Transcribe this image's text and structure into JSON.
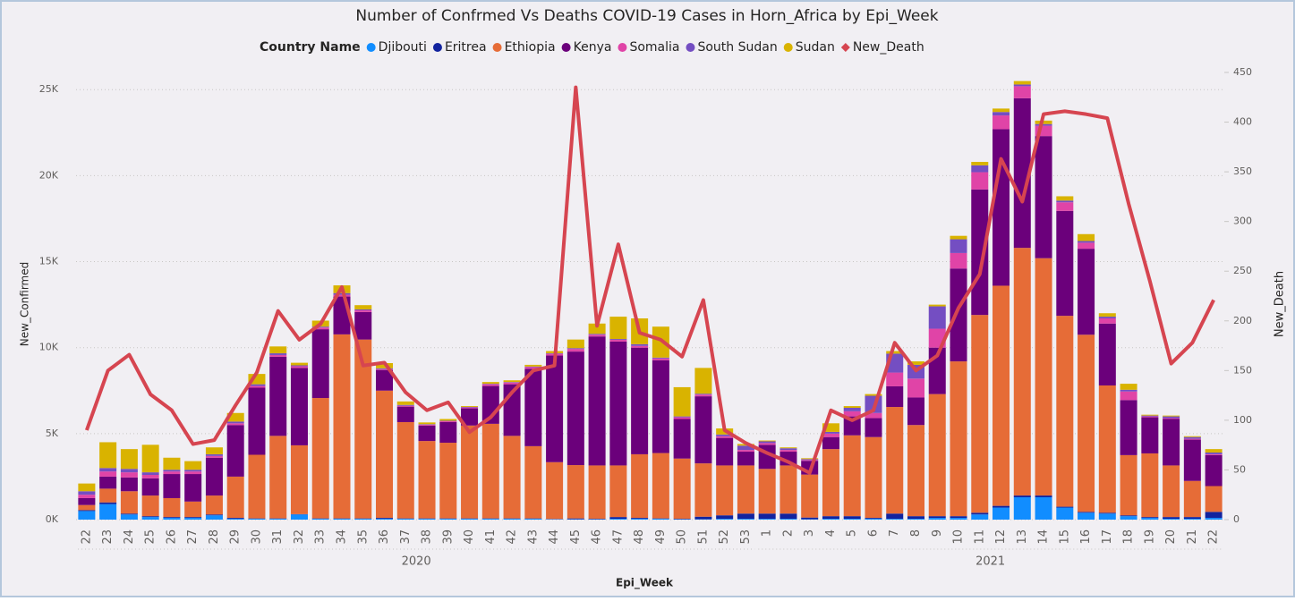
{
  "chart_data": {
    "type": "combo",
    "title": "Number of Confrmed Vs Deaths COVID-19 Cases in Horn_Africa by Epi_Week",
    "legend_title": "Country Name",
    "x_label": "Epi_Week",
    "y_label": "New_Confirmed",
    "y2_label": "New_Death",
    "categories": [
      "22",
      "23",
      "24",
      "25",
      "26",
      "27",
      "28",
      "29",
      "30",
      "31",
      "32",
      "33",
      "34",
      "35",
      "36",
      "37",
      "38",
      "39",
      "40",
      "41",
      "42",
      "43",
      "44",
      "45",
      "46",
      "47",
      "48",
      "49",
      "50",
      "51",
      "52",
      "53",
      "1",
      "2",
      "3",
      "4",
      "5",
      "6",
      "7",
      "8",
      "9",
      "10",
      "11",
      "12",
      "13",
      "14",
      "15",
      "16",
      "17",
      "18",
      "19",
      "20",
      "21",
      "22"
    ],
    "category_groups": [
      {
        "name": "2020",
        "size": 32
      },
      {
        "name": "2021",
        "size": 22
      }
    ],
    "ylim": [
      0,
      26000
    ],
    "yticks": [
      {
        "value": 0,
        "label": "0K"
      },
      {
        "value": 5000,
        "label": "5K"
      },
      {
        "value": 10000,
        "label": "10K"
      },
      {
        "value": 15000,
        "label": "15K"
      },
      {
        "value": 20000,
        "label": "20K"
      },
      {
        "value": 25000,
        "label": "25K"
      }
    ],
    "y2lim": [
      0,
      450
    ],
    "y2ticks": [
      0,
      50,
      100,
      150,
      200,
      250,
      300,
      350,
      400,
      450
    ],
    "grid": true,
    "series": [
      {
        "name": "Djibouti",
        "type": "bar",
        "color": "#118dff",
        "values": [
          500,
          900,
          300,
          150,
          100,
          100,
          250,
          50,
          50,
          50,
          300,
          50,
          50,
          50,
          50,
          50,
          50,
          50,
          50,
          50,
          50,
          50,
          20,
          20,
          20,
          50,
          50,
          50,
          20,
          20,
          50,
          50,
          50,
          50,
          20,
          50,
          50,
          50,
          50,
          50,
          100,
          100,
          300,
          700,
          1300,
          1300,
          700,
          400,
          350,
          200,
          100,
          50,
          50,
          100
        ]
      },
      {
        "name": "Eritrea",
        "type": "bar",
        "color": "#12239e",
        "values": [
          50,
          100,
          50,
          50,
          50,
          50,
          50,
          50,
          20,
          20,
          20,
          20,
          20,
          20,
          50,
          20,
          20,
          20,
          20,
          20,
          20,
          20,
          20,
          50,
          30,
          100,
          50,
          20,
          30,
          150,
          200,
          300,
          300,
          300,
          100,
          150,
          150,
          50,
          300,
          150,
          100,
          100,
          100,
          100,
          100,
          100,
          50,
          50,
          50,
          50,
          50,
          100,
          100,
          350
        ]
      },
      {
        "name": "Ethiopia",
        "type": "bar",
        "color": "#e66c37",
        "values": [
          300,
          800,
          1300,
          1200,
          1100,
          900,
          1100,
          2400,
          3700,
          4800,
          4000,
          7000,
          10700,
          10400,
          7400,
          5600,
          4500,
          4400,
          5400,
          5500,
          4800,
          4200,
          3300,
          3100,
          3100,
          3000,
          3700,
          3800,
          3500,
          3100,
          2900,
          2800,
          2600,
          2800,
          2500,
          3900,
          4700,
          4700,
          6200,
          5300,
          7100,
          9000,
          11500,
          12800,
          14400,
          13800,
          11100,
          10300,
          7400,
          3500,
          3700,
          3000,
          2100,
          1500
        ]
      },
      {
        "name": "Kenya",
        "type": "bar",
        "color": "#6b007b",
        "values": [
          400,
          700,
          800,
          1000,
          1400,
          1600,
          2200,
          3000,
          3900,
          4600,
          4500,
          4000,
          2200,
          1600,
          1200,
          900,
          900,
          1200,
          1000,
          2200,
          3000,
          4500,
          6200,
          6600,
          7500,
          7200,
          6200,
          5400,
          2300,
          3900,
          1600,
          800,
          1400,
          800,
          800,
          700,
          1100,
          1100,
          1200,
          1600,
          2700,
          5400,
          7300,
          9100,
          8700,
          7100,
          6100,
          5000,
          3600,
          3200,
          2100,
          2700,
          2400,
          1800
        ]
      },
      {
        "name": "Somalia",
        "type": "bar",
        "color": "#e044a7",
        "values": [
          200,
          300,
          300,
          200,
          150,
          150,
          100,
          100,
          100,
          100,
          100,
          100,
          100,
          100,
          50,
          50,
          50,
          50,
          50,
          100,
          100,
          100,
          100,
          150,
          100,
          100,
          100,
          100,
          100,
          100,
          100,
          100,
          100,
          100,
          50,
          200,
          300,
          300,
          800,
          1100,
          1100,
          900,
          1000,
          800,
          700,
          600,
          500,
          350,
          300,
          500,
          50,
          50,
          50,
          50
        ]
      },
      {
        "name": "South Sudan",
        "type": "bar",
        "color": "#744ec2",
        "values": [
          200,
          200,
          200,
          150,
          100,
          100,
          100,
          100,
          100,
          100,
          50,
          50,
          100,
          50,
          50,
          50,
          30,
          30,
          30,
          30,
          30,
          30,
          30,
          50,
          50,
          50,
          100,
          50,
          50,
          50,
          100,
          250,
          100,
          100,
          50,
          100,
          200,
          1000,
          1100,
          800,
          1300,
          800,
          400,
          200,
          100,
          100,
          100,
          100,
          100,
          100,
          50,
          100,
          100,
          100
        ]
      },
      {
        "name": "Sudan",
        "type": "bar",
        "color": "#d9b300",
        "values": [
          450,
          1500,
          1150,
          1600,
          700,
          500,
          400,
          500,
          600,
          400,
          150,
          350,
          450,
          250,
          300,
          200,
          100,
          100,
          50,
          100,
          100,
          100,
          130,
          500,
          600,
          1300,
          1500,
          1800,
          1700,
          1500,
          350,
          100,
          50,
          50,
          50,
          500,
          100,
          100,
          150,
          200,
          100,
          200,
          200,
          200,
          200,
          200,
          250,
          400,
          200,
          350,
          50,
          50,
          50,
          200
        ]
      },
      {
        "name": "New_Death",
        "type": "line",
        "axis": "y2",
        "color": "#d64550",
        "values": [
          90,
          150,
          166,
          126,
          110,
          76,
          80,
          115,
          148,
          210,
          181,
          197,
          234,
          155,
          158,
          128,
          110,
          118,
          88,
          103,
          128,
          150,
          155,
          435,
          195,
          277,
          188,
          181,
          164,
          221,
          90,
          77,
          67,
          58,
          47,
          110,
          100,
          110,
          178,
          150,
          165,
          213,
          247,
          363,
          320,
          408,
          411,
          408,
          404,
          318,
          240,
          157,
          178,
          221
        ]
      }
    ]
  }
}
